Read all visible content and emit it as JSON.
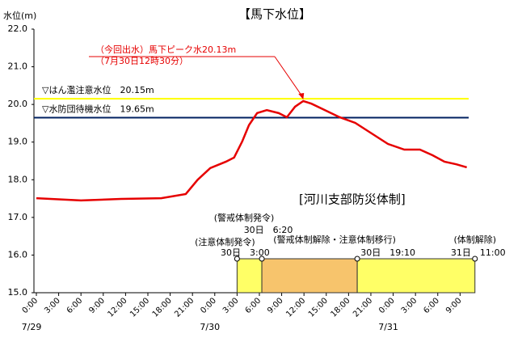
{
  "chart_data": {
    "type": "line",
    "title": "【馬下水位】",
    "y_label": "水位(m)",
    "xlim": [
      0,
      58.7
    ],
    "ylim": [
      15,
      22
    ],
    "yticks": [
      {
        "value": 15,
        "label": "15.0"
      },
      {
        "value": 16,
        "label": "16.0"
      },
      {
        "value": 17,
        "label": "17.0"
      },
      {
        "value": 18,
        "label": "18.0"
      },
      {
        "value": 19,
        "label": "19.0"
      },
      {
        "value": 20,
        "label": "20.0"
      },
      {
        "value": 21,
        "label": "21.0"
      },
      {
        "value": 22,
        "label": "22.0"
      }
    ],
    "xticks": [
      {
        "value": 0,
        "label": "0:00"
      },
      {
        "value": 3,
        "label": "3:00"
      },
      {
        "value": 6,
        "label": "6:00"
      },
      {
        "value": 9,
        "label": "9:00"
      },
      {
        "value": 12,
        "label": "12:00"
      },
      {
        "value": 15,
        "label": "15:00"
      },
      {
        "value": 18,
        "label": "18:00"
      },
      {
        "value": 21,
        "label": "21:00"
      },
      {
        "value": 24,
        "label": "0:00"
      },
      {
        "value": 27,
        "label": "3:00"
      },
      {
        "value": 30,
        "label": "6:00"
      },
      {
        "value": 33,
        "label": "9:00"
      },
      {
        "value": 36,
        "label": "12:00"
      },
      {
        "value": 39,
        "label": "15:00"
      },
      {
        "value": 42,
        "label": "18:00"
      },
      {
        "value": 45,
        "label": "21:00"
      },
      {
        "value": 48,
        "label": "0:00"
      },
      {
        "value": 51,
        "label": "3:00"
      },
      {
        "value": 54,
        "label": "6:00"
      },
      {
        "value": 57,
        "label": "9:00"
      }
    ],
    "dates": [
      {
        "value": 0,
        "label": "7/29"
      },
      {
        "value": 24,
        "label": "7/30"
      },
      {
        "value": 48,
        "label": "7/31"
      }
    ],
    "series": [
      {
        "name": "馬下水位",
        "color": "#e60000",
        "x": [
          0,
          6,
          11.4,
          16.8,
          20.1,
          21.7,
          23.4,
          25.5,
          26.6,
          27.7,
          28.6,
          29.7,
          31.0,
          32.6,
          33.7,
          34.8,
          35.9,
          37.0,
          38.6,
          40.8,
          42.9,
          45.1,
          47.3,
          49.5,
          51.6,
          53.3,
          54.9,
          56.5,
          57.9
        ],
        "values": [
          17.51,
          17.45,
          17.49,
          17.51,
          17.62,
          18.0,
          18.31,
          18.48,
          18.59,
          19.02,
          19.45,
          19.77,
          19.85,
          19.77,
          19.66,
          19.94,
          20.09,
          20.02,
          19.87,
          19.66,
          19.51,
          19.23,
          18.95,
          18.8,
          18.8,
          18.65,
          18.48,
          18.41,
          18.33
        ]
      }
    ],
    "thresholds": [
      {
        "label": "▽はん濫注意水位　20.15m",
        "value": 20.15,
        "color": "#ffff00"
      },
      {
        "label": "▽水防団待機水位　19.65m",
        "value": 19.65,
        "color": "#002060"
      }
    ],
    "annotation": [
      "（今回出水）馬下ピーク水20.13m",
      "（7月30日12時30分）"
    ],
    "timeline": {
      "title": "[河川支部防災体制]",
      "events": [
        {
          "name": "(注意体制発令)",
          "time": "30日　3:00",
          "x": 27
        },
        {
          "name": "(警戒体制発令)",
          "time": "30日　6:20",
          "x": 30.333
        },
        {
          "name": "(警戒体制解除・注意体制移行)",
          "time": "30日　19:10",
          "x": 43.167
        },
        {
          "name": "(体制解除)",
          "time": "31日　11:00",
          "x": 59
        }
      ],
      "colors": [
        "#ffff66",
        "#f7c46c",
        "#ffff66"
      ]
    }
  }
}
